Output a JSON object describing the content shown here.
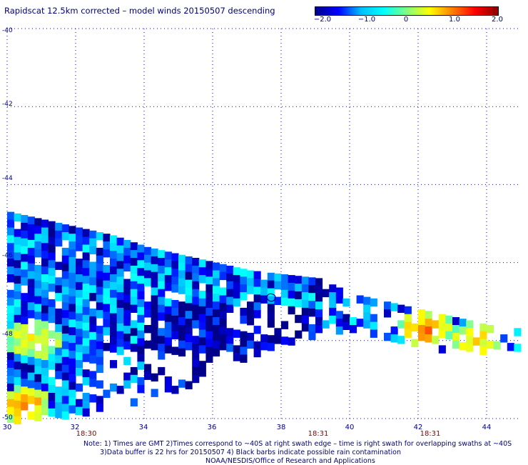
{
  "title": "Rapidscat 12.5km corrected – model winds 20150507 descending",
  "colorbar": {
    "labels": [
      "−2.0",
      "−1.0",
      "0",
      "1.0",
      "2.0"
    ],
    "values": [
      -2.0,
      -1.0,
      0.0,
      1.0,
      2.0
    ],
    "colors": [
      "#00008b",
      "#0000ff",
      "#00bfff",
      "#00ffff",
      "#7fff7f",
      "#ffff00",
      "#ff7f00",
      "#ff0000",
      "#8b0000"
    ]
  },
  "axes": {
    "lon_ticks": [
      "30",
      "32",
      "34",
      "36",
      "38",
      "40",
      "42",
      "44"
    ],
    "lat_ticks": [
      "-40",
      "-42",
      "-44",
      "-46",
      "-48",
      "-50"
    ],
    "lon_range": [
      30,
      45
    ],
    "lat_range": [
      -40,
      -50
    ]
  },
  "time_labels": [
    {
      "text": "18:30",
      "lon": 32.3
    },
    {
      "text": "18:31",
      "lon": 38.9
    },
    {
      "text": "18:31",
      "lon": 42.2
    }
  ],
  "notes": [
    "Note: 1) Times are GMT 2)Times correspond to ~40S at right swath edge – time is right swath for overlapping swaths at ~40S",
    "3)Data buffer is 22 hrs for 20150507 4) Black barbs indicate possible rain contamination",
    "NOAA/NESDIS/Office of Research and Applications"
  ],
  "chart_data": {
    "type": "heatmap",
    "title": "Rapidscat 12.5km corrected – model winds 20150507 descending",
    "x_axis": "longitude",
    "y_axis": "latitude",
    "xlim": [
      30,
      45
    ],
    "ylim": [
      -50,
      -40
    ],
    "colorbar_range": [
      -2.0,
      2.0
    ],
    "swath": [
      {
        "lon": 30.0,
        "lat_top": -44.7,
        "lat_bottom": -50.0
      },
      {
        "lon": 31.0,
        "lat_top": -44.9,
        "lat_bottom": -49.9
      },
      {
        "lon": 32.0,
        "lat_top": -45.1,
        "lat_bottom": -49.8
      },
      {
        "lon": 33.0,
        "lat_top": -45.3,
        "lat_bottom": -49.7
      },
      {
        "lon": 34.0,
        "lat_top": -45.6,
        "lat_bottom": -49.5
      },
      {
        "lon": 35.0,
        "lat_top": -45.8,
        "lat_bottom": -49.2
      },
      {
        "lon": 36.0,
        "lat_top": -46.0,
        "lat_bottom": -48.7
      },
      {
        "lon": 37.0,
        "lat_top": -46.2,
        "lat_bottom": -48.4
      },
      {
        "lon": 38.0,
        "lat_top": -46.3,
        "lat_bottom": -48.0
      },
      {
        "lon": 39.0,
        "lat_top": -46.4,
        "lat_bottom": -47.8
      },
      {
        "lon": 40.0,
        "lat_top": -46.8,
        "lat_bottom": -47.7
      },
      {
        "lon": 41.0,
        "lat_top": -47.0,
        "lat_bottom": -47.9
      },
      {
        "lon": 42.0,
        "lat_top": -47.2,
        "lat_bottom": -48.1
      },
      {
        "lon": 43.0,
        "lat_top": -47.4,
        "lat_bottom": -48.2
      },
      {
        "lon": 44.0,
        "lat_top": -47.6,
        "lat_bottom": -48.3
      },
      {
        "lon": 45.0,
        "lat_top": -47.7,
        "lat_bottom": -48.3
      }
    ],
    "hot_spots": [
      {
        "lon": 42.1,
        "lat": -47.6,
        "value": 1.3
      },
      {
        "lon": 43.6,
        "lat": -47.9,
        "value": 0.6
      },
      {
        "lon": 30.4,
        "lat": -49.6,
        "value": 1.4
      },
      {
        "lon": 30.7,
        "lat": -47.9,
        "value": 0.4
      }
    ],
    "typical_value": -1.3
  }
}
